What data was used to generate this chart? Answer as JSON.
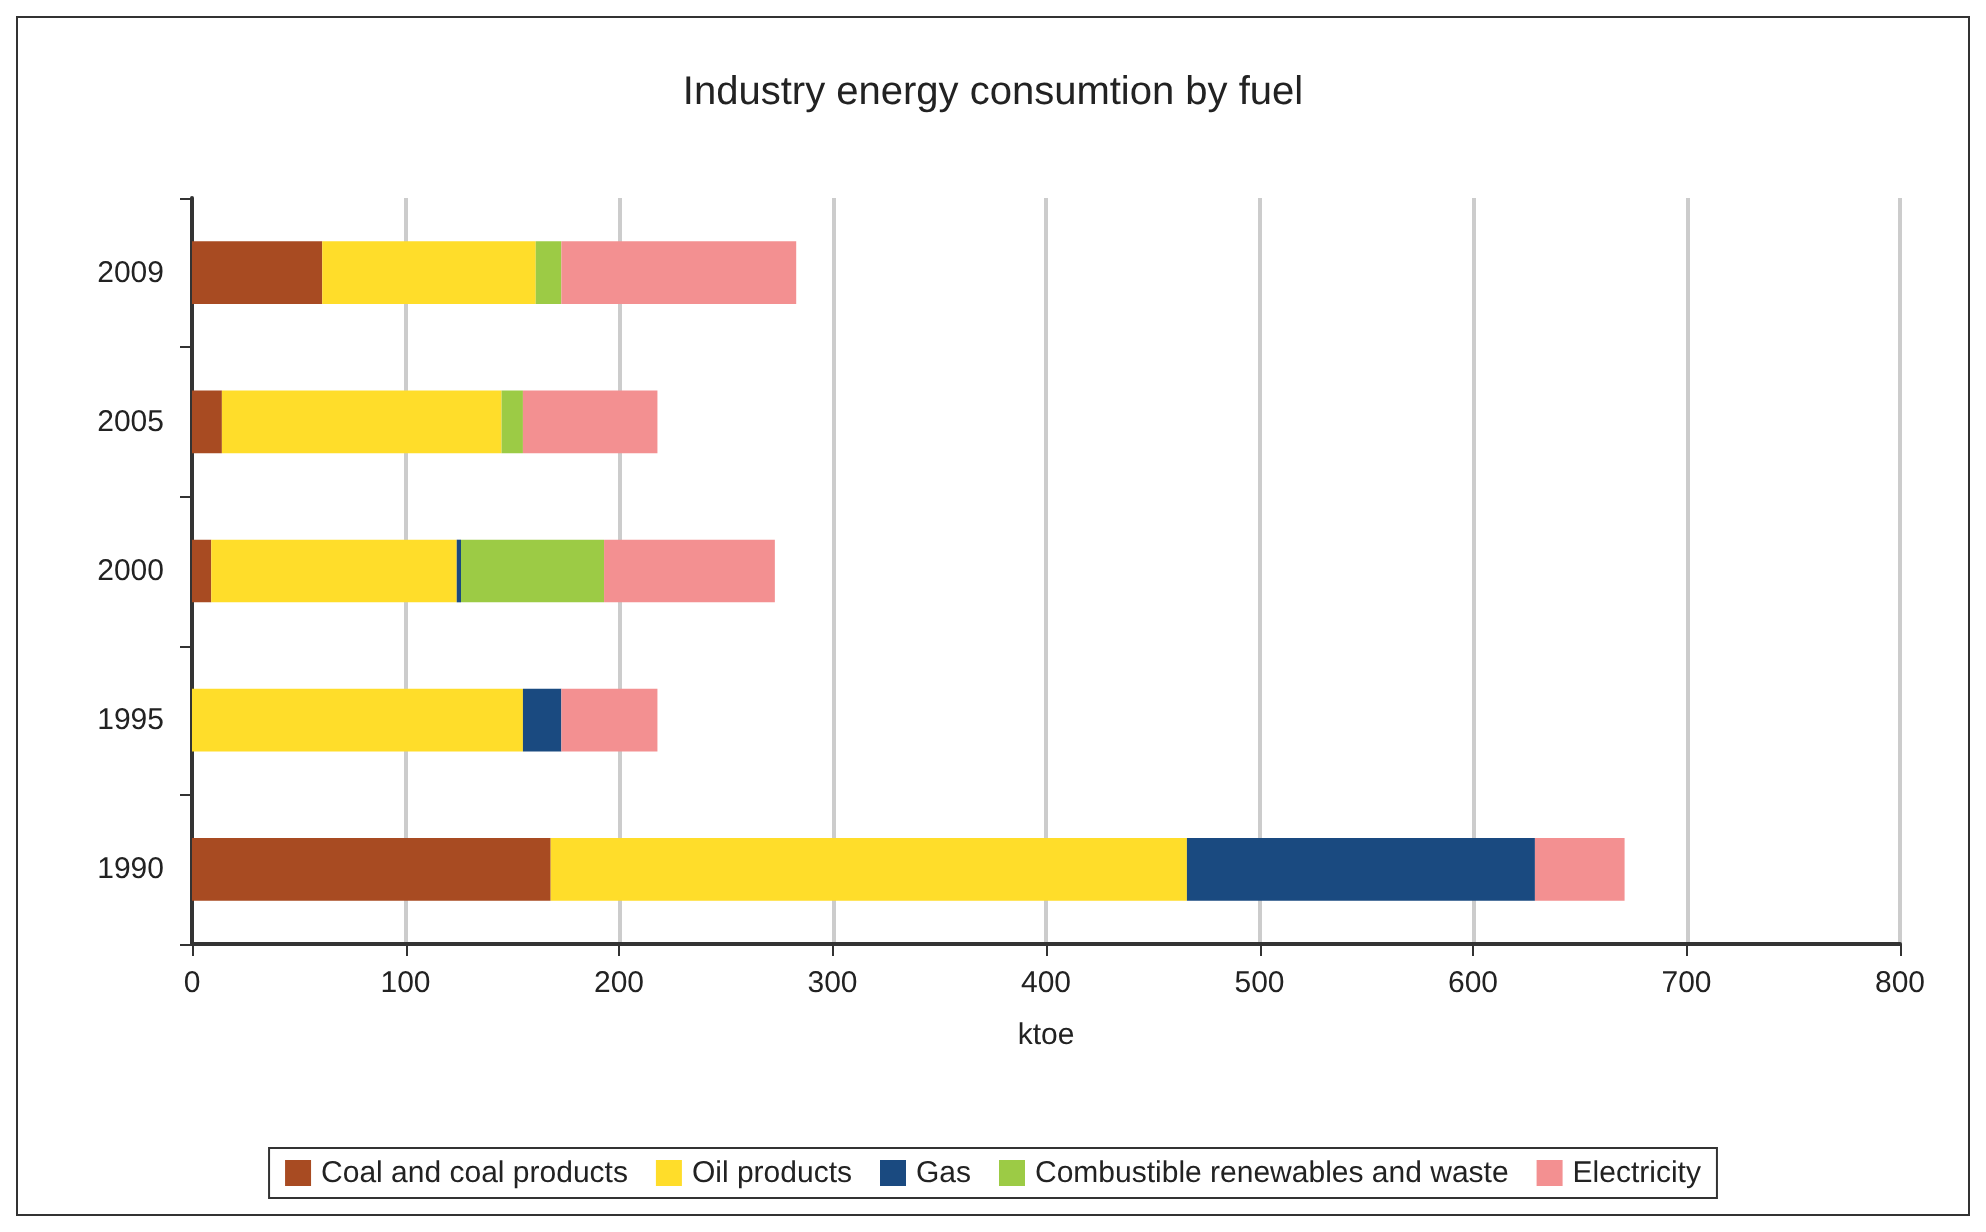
{
  "chart_data": {
    "type": "bar",
    "title": "Industry energy consumtion by fuel",
    "xlabel": "ktoe",
    "orientation": "horizontal",
    "stacked": true,
    "categories": [
      "2009",
      "2005",
      "2000",
      "1995",
      "1990"
    ],
    "series": [
      {
        "name": "Coal and coal products",
        "color": "#a84b22",
        "values": [
          61,
          14,
          9,
          0,
          168
        ]
      },
      {
        "name": "Oil products",
        "color": "#ffdd2a",
        "values": [
          100,
          131,
          115,
          155,
          298
        ]
      },
      {
        "name": "Gas",
        "color": "#1a4a80",
        "values": [
          0,
          0,
          2,
          18,
          163
        ]
      },
      {
        "name": "Combustible renewables and waste",
        "color": "#9ccb45",
        "values": [
          12,
          10,
          67,
          0,
          0
        ]
      },
      {
        "name": "Electricity",
        "color": "#f39091",
        "values": [
          110,
          63,
          80,
          45,
          42
        ]
      }
    ],
    "xlim": [
      0,
      800
    ],
    "xticks": [
      0,
      100,
      200,
      300,
      400,
      500,
      600,
      700,
      800
    ],
    "grid": "x",
    "legend": "bottom"
  }
}
